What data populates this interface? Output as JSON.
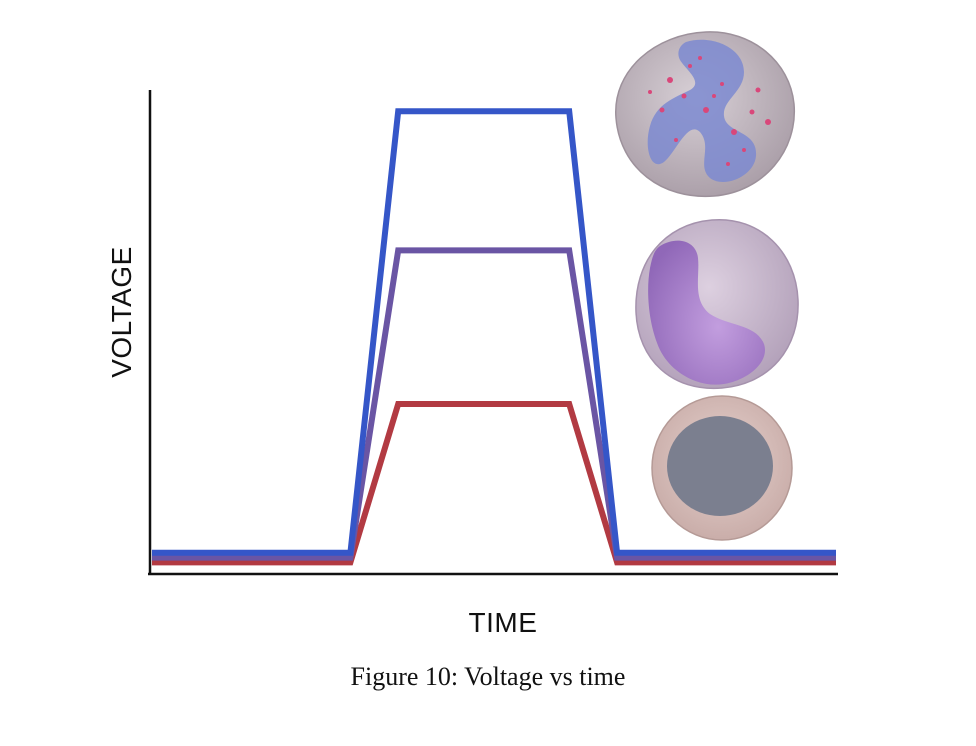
{
  "chart_data": {
    "type": "line",
    "xlabel": "TIME",
    "ylabel": "VOLTAGE",
    "x": [
      0,
      2.9,
      3.6,
      6.1,
      6.8,
      10
    ],
    "xlim": [
      0,
      10
    ],
    "ylim": [
      0,
      100
    ],
    "grid": false,
    "legend": "none",
    "series": [
      {
        "name": "blue pulse",
        "color": "#3556c8",
        "values": [
          4,
          4,
          96,
          96,
          4,
          4
        ]
      },
      {
        "name": "purple pulse",
        "color": "#6a55a4",
        "values": [
          3,
          3,
          67,
          67,
          3,
          3
        ]
      },
      {
        "name": "red pulse",
        "color": "#b23a42",
        "values": [
          2,
          2,
          35,
          35,
          2,
          2
        ]
      }
    ]
  },
  "caption": "Figure 10: Voltage vs time",
  "illustrations": [
    {
      "name": "cell with irregular nucleus and granules",
      "shell": "#c9bfc6",
      "nucleus": "#7a88c8",
      "granules": "#d9477a"
    },
    {
      "name": "cell with kidney-shaped nucleus",
      "shell": "#cdbcd2",
      "nucleus": "#9e72c8"
    },
    {
      "name": "cell with round nucleus",
      "shell": "#d9c0bd",
      "nucleus": "#7b7f8f"
    }
  ]
}
